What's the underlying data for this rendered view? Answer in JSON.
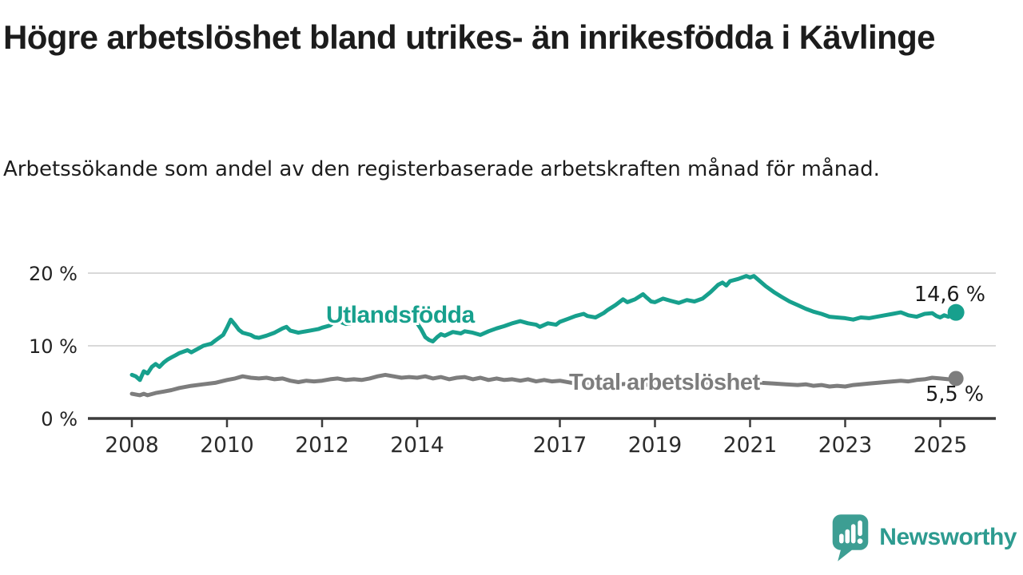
{
  "header": {
    "title": "Högre arbetslöshet bland utrikes- än inrikesfödda i Kävlinge",
    "subtitle": "Arbetssökande som andel av den registerbaserade arbetskraften månad för månad."
  },
  "chart_data": {
    "type": "line",
    "title": "Högre arbetslöshet bland utrikes- än inrikesfödda i Kävlinge",
    "unit": "%",
    "grid": "horizontal",
    "legend_position": "inline-labels",
    "y_axis": {
      "range": [
        0,
        21.5
      ],
      "ticks": [
        {
          "value": 20,
          "label": "20 %"
        },
        {
          "value": 10,
          "label": "10 %"
        },
        {
          "value": 0,
          "label": "0 %"
        }
      ]
    },
    "x_axis": {
      "range": [
        2007.55,
        2025.8
      ],
      "ticks": [
        {
          "value": 2008,
          "label": "2008"
        },
        {
          "value": 2010,
          "label": "2010"
        },
        {
          "value": 2012,
          "label": "2012"
        },
        {
          "value": 2014,
          "label": "2014"
        },
        {
          "value": 2017,
          "label": "2017"
        },
        {
          "value": 2019,
          "label": "2019"
        },
        {
          "value": 2021,
          "label": "2021"
        },
        {
          "value": 2023,
          "label": "2023"
        },
        {
          "value": 2025,
          "label": "2025"
        }
      ]
    },
    "series": [
      {
        "name": "Utlandsfödda",
        "color": "#17a08d",
        "end_value": 14.6,
        "end_value_label": "14,6 %",
        "points": [
          [
            2008,
            6
          ],
          [
            2008.08,
            5.8
          ],
          [
            2008.17,
            5.3
          ],
          [
            2008.25,
            6.5
          ],
          [
            2008.33,
            6.2
          ],
          [
            2008.42,
            7.1
          ],
          [
            2008.5,
            7.5
          ],
          [
            2008.58,
            7.1
          ],
          [
            2008.67,
            7.7
          ],
          [
            2008.75,
            8.1
          ],
          [
            2008.83,
            8.4
          ],
          [
            2008.92,
            8.7
          ],
          [
            2009,
            9
          ],
          [
            2009.17,
            9.4
          ],
          [
            2009.25,
            9.1
          ],
          [
            2009.42,
            9.7
          ],
          [
            2009.5,
            10
          ],
          [
            2009.67,
            10.3
          ],
          [
            2009.75,
            10.7
          ],
          [
            2009.92,
            11.5
          ],
          [
            2010,
            12.5
          ],
          [
            2010.08,
            13.6
          ],
          [
            2010.17,
            12.9
          ],
          [
            2010.25,
            12.2
          ],
          [
            2010.33,
            11.8
          ],
          [
            2010.5,
            11.5
          ],
          [
            2010.58,
            11.2
          ],
          [
            2010.67,
            11.1
          ],
          [
            2010.83,
            11.4
          ],
          [
            2010.92,
            11.6
          ],
          [
            2011,
            11.8
          ],
          [
            2011.17,
            12.4
          ],
          [
            2011.25,
            12.6
          ],
          [
            2011.33,
            12.1
          ],
          [
            2011.5,
            11.8
          ],
          [
            2011.58,
            11.9
          ],
          [
            2011.75,
            12.1
          ],
          [
            2011.92,
            12.3
          ],
          [
            2012,
            12.5
          ],
          [
            2012.17,
            12.8
          ],
          [
            2012.33,
            13.8
          ],
          [
            2012.42,
            13.2
          ],
          [
            2012.5,
            13
          ],
          [
            2012.67,
            13.2
          ],
          [
            2012.83,
            13.4
          ],
          [
            2013,
            13.6
          ],
          [
            2013.25,
            13.9
          ],
          [
            2013.42,
            14.2
          ],
          [
            2013.5,
            13.7
          ],
          [
            2013.58,
            13.4
          ],
          [
            2013.75,
            13.6
          ],
          [
            2013.92,
            13.2
          ],
          [
            2014,
            13.1
          ],
          [
            2014.08,
            12.3
          ],
          [
            2014.17,
            11.2
          ],
          [
            2014.25,
            10.8
          ],
          [
            2014.33,
            10.6
          ],
          [
            2014.42,
            11.2
          ],
          [
            2014.5,
            11.6
          ],
          [
            2014.58,
            11.4
          ],
          [
            2014.75,
            11.9
          ],
          [
            2014.92,
            11.7
          ],
          [
            2015,
            12
          ],
          [
            2015.17,
            11.8
          ],
          [
            2015.33,
            11.5
          ],
          [
            2015.5,
            12
          ],
          [
            2015.67,
            12.4
          ],
          [
            2015.83,
            12.7
          ],
          [
            2016,
            13.1
          ],
          [
            2016.17,
            13.4
          ],
          [
            2016.33,
            13.1
          ],
          [
            2016.5,
            12.9
          ],
          [
            2016.58,
            12.6
          ],
          [
            2016.75,
            13.1
          ],
          [
            2016.92,
            12.9
          ],
          [
            2017,
            13.3
          ],
          [
            2017.17,
            13.7
          ],
          [
            2017.33,
            14.1
          ],
          [
            2017.5,
            14.4
          ],
          [
            2017.58,
            14.1
          ],
          [
            2017.75,
            13.9
          ],
          [
            2017.92,
            14.5
          ],
          [
            2018,
            14.9
          ],
          [
            2018.17,
            15.6
          ],
          [
            2018.33,
            16.4
          ],
          [
            2018.42,
            16
          ],
          [
            2018.58,
            16.4
          ],
          [
            2018.75,
            17.1
          ],
          [
            2018.83,
            16.6
          ],
          [
            2018.92,
            16.1
          ],
          [
            2019,
            16
          ],
          [
            2019.17,
            16.5
          ],
          [
            2019.33,
            16.2
          ],
          [
            2019.5,
            15.9
          ],
          [
            2019.67,
            16.3
          ],
          [
            2019.83,
            16.1
          ],
          [
            2020,
            16.5
          ],
          [
            2020.17,
            17.4
          ],
          [
            2020.33,
            18.4
          ],
          [
            2020.42,
            18.7
          ],
          [
            2020.5,
            18.3
          ],
          [
            2020.58,
            18.9
          ],
          [
            2020.75,
            19.2
          ],
          [
            2020.92,
            19.6
          ],
          [
            2021,
            19.4
          ],
          [
            2021.08,
            19.6
          ],
          [
            2021.17,
            19.1
          ],
          [
            2021.33,
            18.2
          ],
          [
            2021.5,
            17.4
          ],
          [
            2021.67,
            16.7
          ],
          [
            2021.83,
            16.1
          ],
          [
            2022,
            15.6
          ],
          [
            2022.17,
            15.1
          ],
          [
            2022.33,
            14.7
          ],
          [
            2022.5,
            14.4
          ],
          [
            2022.67,
            14
          ],
          [
            2022.83,
            13.9
          ],
          [
            2023,
            13.8
          ],
          [
            2023.17,
            13.6
          ],
          [
            2023.33,
            13.9
          ],
          [
            2023.5,
            13.8
          ],
          [
            2023.67,
            14
          ],
          [
            2023.83,
            14.2
          ],
          [
            2024,
            14.4
          ],
          [
            2024.17,
            14.6
          ],
          [
            2024.33,
            14.2
          ],
          [
            2024.5,
            14
          ],
          [
            2024.67,
            14.4
          ],
          [
            2024.83,
            14.5
          ],
          [
            2024.92,
            14.1
          ],
          [
            2025,
            13.9
          ],
          [
            2025.08,
            14.2
          ],
          [
            2025.17,
            14
          ],
          [
            2025.25,
            14.3
          ],
          [
            2025.33,
            14.6
          ]
        ]
      },
      {
        "name": "Total arbetslöshet",
        "color": "#7d7d7d",
        "end_value": 5.5,
        "end_value_label": "5,5 %",
        "points": [
          [
            2008,
            3.4
          ],
          [
            2008.17,
            3.2
          ],
          [
            2008.25,
            3.4
          ],
          [
            2008.33,
            3.2
          ],
          [
            2008.5,
            3.5
          ],
          [
            2008.67,
            3.7
          ],
          [
            2008.83,
            3.9
          ],
          [
            2009,
            4.2
          ],
          [
            2009.25,
            4.5
          ],
          [
            2009.5,
            4.7
          ],
          [
            2009.75,
            4.9
          ],
          [
            2010,
            5.3
          ],
          [
            2010.17,
            5.5
          ],
          [
            2010.33,
            5.8
          ],
          [
            2010.5,
            5.6
          ],
          [
            2010.67,
            5.5
          ],
          [
            2010.83,
            5.6
          ],
          [
            2011,
            5.4
          ],
          [
            2011.17,
            5.5
          ],
          [
            2011.33,
            5.2
          ],
          [
            2011.5,
            5
          ],
          [
            2011.67,
            5.2
          ],
          [
            2011.83,
            5.1
          ],
          [
            2012,
            5.2
          ],
          [
            2012.17,
            5.4
          ],
          [
            2012.33,
            5.5
          ],
          [
            2012.5,
            5.3
          ],
          [
            2012.67,
            5.4
          ],
          [
            2012.83,
            5.3
          ],
          [
            2013,
            5.5
          ],
          [
            2013.17,
            5.8
          ],
          [
            2013.33,
            6
          ],
          [
            2013.5,
            5.8
          ],
          [
            2013.67,
            5.6
          ],
          [
            2013.83,
            5.7
          ],
          [
            2014,
            5.6
          ],
          [
            2014.17,
            5.8
          ],
          [
            2014.33,
            5.5
          ],
          [
            2014.5,
            5.7
          ],
          [
            2014.67,
            5.4
          ],
          [
            2014.83,
            5.6
          ],
          [
            2015,
            5.7
          ],
          [
            2015.17,
            5.4
          ],
          [
            2015.33,
            5.6
          ],
          [
            2015.5,
            5.3
          ],
          [
            2015.67,
            5.5
          ],
          [
            2015.83,
            5.3
          ],
          [
            2016,
            5.4
          ],
          [
            2016.17,
            5.2
          ],
          [
            2016.33,
            5.4
          ],
          [
            2016.5,
            5.1
          ],
          [
            2016.67,
            5.3
          ],
          [
            2016.83,
            5.1
          ],
          [
            2017,
            5.2
          ],
          [
            2017.25,
            4.9
          ],
          [
            2017.5,
            5
          ],
          [
            2017.75,
            4.8
          ],
          [
            2018,
            4.9
          ],
          [
            2018.25,
            4.7
          ],
          [
            2018.5,
            4.8
          ],
          [
            2018.75,
            4.6
          ],
          [
            2019,
            4.7
          ],
          [
            2019.25,
            4.8
          ],
          [
            2019.5,
            4.6
          ],
          [
            2019.75,
            4.7
          ],
          [
            2020,
            4.8
          ],
          [
            2020.25,
            5.2
          ],
          [
            2020.5,
            5.4
          ],
          [
            2020.75,
            5.2
          ],
          [
            2021,
            5.1
          ],
          [
            2021.25,
            4.9
          ],
          [
            2021.5,
            4.8
          ],
          [
            2021.75,
            4.7
          ],
          [
            2022,
            4.6
          ],
          [
            2022.17,
            4.7
          ],
          [
            2022.33,
            4.5
          ],
          [
            2022.5,
            4.6
          ],
          [
            2022.67,
            4.4
          ],
          [
            2022.83,
            4.5
          ],
          [
            2023,
            4.4
          ],
          [
            2023.17,
            4.6
          ],
          [
            2023.33,
            4.7
          ],
          [
            2023.5,
            4.8
          ],
          [
            2023.67,
            4.9
          ],
          [
            2023.83,
            5
          ],
          [
            2024,
            5.1
          ],
          [
            2024.17,
            5.2
          ],
          [
            2024.33,
            5.1
          ],
          [
            2024.5,
            5.3
          ],
          [
            2024.67,
            5.4
          ],
          [
            2024.83,
            5.6
          ],
          [
            2025,
            5.5
          ],
          [
            2025.17,
            5.4
          ],
          [
            2025.33,
            5.5
          ]
        ]
      }
    ],
    "colors": {
      "grid": "#d9d9d9",
      "axis": "#3c3c3c",
      "tick_label": "#2b2b2b",
      "value_label": "#1a1a1a"
    }
  },
  "footer": {
    "brand_name": "Newsworthy",
    "brand_color": "#2d9b90",
    "logo_color": "#3d9e93"
  }
}
